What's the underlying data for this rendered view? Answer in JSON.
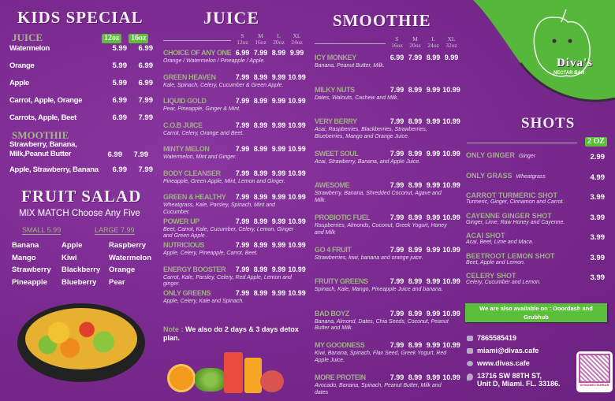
{
  "colors": {
    "background": "#7b2a90",
    "accent_green": "#5cbf3a",
    "item_name": "#a3ad8a"
  },
  "kids": {
    "title": "KIDS SPECIAL",
    "juice_label": "JUICE",
    "size1": "12oz",
    "size2": "16oz",
    "juice": [
      {
        "name": "Watermelon",
        "p1": "5.99",
        "p2": "6.99"
      },
      {
        "name": "Orange",
        "p1": "5.99",
        "p2": "6.99"
      },
      {
        "name": "Apple",
        "p1": "5.99",
        "p2": "6.99"
      },
      {
        "name": "Carrot, Apple, Orange",
        "p1": "6.99",
        "p2": "7.99"
      },
      {
        "name": "Carrots, Apple, Beet",
        "p1": "6.99",
        "p2": "7.99"
      }
    ],
    "smoothie_label": "SMOOTHIE",
    "smoothie": [
      {
        "name": "Strawberry, Banana, Milk,Peanut Butter",
        "p1": "6.99",
        "p2": "7.99"
      },
      {
        "name": "Apple, Strawberry, Banana",
        "p1": "6.99",
        "p2": "7.99"
      }
    ]
  },
  "fruit_salad": {
    "title": "FRUIT SALAD",
    "subtitle": "MIX MATCH Choose Any Five",
    "small": "SMALL  5.99",
    "large": "LARGE 7.99",
    "fruits": [
      [
        "Banana",
        "Apple",
        "Raspberry"
      ],
      [
        "Mango",
        "Kiwi",
        "Watermelon"
      ],
      [
        "Strawberry",
        "Blackberry",
        "Orange"
      ],
      [
        "Pineapple",
        "Blueberry",
        "Pear"
      ]
    ]
  },
  "juice": {
    "title": "JUICE",
    "sizes": [
      [
        "S",
        "12oz"
      ],
      [
        "M",
        "16oz"
      ],
      [
        "L",
        "20oz"
      ],
      [
        "XL",
        "24oz"
      ]
    ],
    "items": [
      {
        "name": "CHOICE OF ANY ONE",
        "desc": "Orange / Watermelon / Pineapple / Apple.",
        "prices": [
          "6.99",
          "7.99",
          "8.99",
          "9.99"
        ]
      },
      {
        "name": "GREEN HEAVEN",
        "desc": "Kale, Spinach, Celery, Cucumber & Green Apple.",
        "prices": [
          "7.99",
          "8.99",
          "9.99",
          "10.99"
        ]
      },
      {
        "name": "LIQUID GOLD",
        "desc": "Pear, Pineapple, Ginger & Mint.",
        "prices": [
          "7.99",
          "8.99",
          "9.99",
          "10.99"
        ]
      },
      {
        "name": "C.O.B JUICE",
        "desc": "Carrot, Celery, Orange and Beet.",
        "prices": [
          "7.99",
          "8.99",
          "9.99",
          "10.99"
        ]
      },
      {
        "name": "MINTY MELON",
        "desc": "Watermelon, Mint and Ginger.",
        "prices": [
          "7.99",
          "8.99",
          "9.99",
          "10.99"
        ]
      },
      {
        "name": "BODY CLEANSER",
        "desc": "Pineapple, Green Apple, Mint, Lemon and Ginger.",
        "prices": [
          "7.99",
          "8.99",
          "9.99",
          "10.99"
        ]
      },
      {
        "name": "GREEN & HEALTHY",
        "desc": "Wheatgrass, Kale, Parsley, Spinach, Mint and Cucumber.",
        "prices": [
          "7.99",
          "8.99",
          "9.99",
          "10.99"
        ]
      },
      {
        "name": "POWER UP",
        "desc": "Beet, Carrot, Kale, Cucumber, Celery, Lemon, Ginger and Green Apple .",
        "prices": [
          "7.99",
          "8.99",
          "9.99",
          "10.99"
        ]
      },
      {
        "name": "NUTRICIOUS",
        "desc": "Apple, Celery, Pineapple, Carrot, Beet.",
        "prices": [
          "7.99",
          "8.99",
          "9.99",
          "10.99"
        ]
      },
      {
        "name": "ENERGY BOOSTER",
        "desc": "Carrot, Kale, Parsley, Celery, Red Apple, Lemon and ginger.",
        "prices": [
          "7.99",
          "8.99",
          "9.99",
          "10.99"
        ]
      },
      {
        "name": "ONLY GREENS",
        "desc": "Apple, Celery, Kale and Spinach.",
        "prices": [
          "7.99",
          "8.99",
          "9.99",
          "10.99"
        ]
      }
    ],
    "note_label": "Note :",
    "note": " We also do 2 days & 3 days detox plan."
  },
  "smoothie": {
    "title": "SMOOTHIE",
    "sizes": [
      [
        "S",
        "16oz"
      ],
      [
        "M",
        "20oz"
      ],
      [
        "L",
        "24oz"
      ],
      [
        "XL",
        "32oz"
      ]
    ],
    "items": [
      {
        "name": "ICY MONKEY",
        "desc": "Banana, Peanut Butter, Milk.",
        "prices": [
          "6.99",
          "7.99",
          "8.99",
          "9.99"
        ]
      },
      {
        "name": "MILKY NUTS",
        "desc": "Dates, Walnuts, Cashew and Milk.",
        "prices": [
          "7.99",
          "8.99",
          "9.99",
          "10.99"
        ]
      },
      {
        "name": "VERY BERRY",
        "desc": "Acai, Raspberries, Blackberries, Strawberries, Blueberries, Mango and Orange Juice.",
        "prices": [
          "7.99",
          "8.99",
          "9.99",
          "10.99"
        ]
      },
      {
        "name": "SWEET SOUL",
        "desc": "Acai, Strawberry, Banana, and Apple Juice.",
        "prices": [
          "7.99",
          "8.99",
          "9.99",
          "10.99"
        ]
      },
      {
        "name": "AWESOME",
        "desc": "Strawberry, Banana, Shredded Coconut, Agave and Milk.",
        "prices": [
          "7.99",
          "8.99",
          "9.99",
          "10.99"
        ]
      },
      {
        "name": "PROBIOTIC FUEL",
        "desc": "Raspberries, Almonds, Coconut, Greek Yogurt, Honey and Milk",
        "prices": [
          "7.99",
          "8.99",
          "9.99",
          "10.99"
        ]
      },
      {
        "name": "GO 4 FRUIT",
        "desc": "Strawberries, kiwi, banana and orange juice.",
        "prices": [
          "7.99",
          "8.99",
          "9.99",
          "10.99"
        ]
      },
      {
        "name": "FRUITY GREENS",
        "desc": "Spinach, Kale, Mango, Pineapple Juice and banana.",
        "prices": [
          "7.99",
          "8.99",
          "9.99",
          "10.99"
        ]
      },
      {
        "name": "BAD BOYZ",
        "desc": "Banana, Almond, Dates, Chia Seeds, Coconut, Peanut Butter and Milk.",
        "prices": [
          "7.99",
          "8.99",
          "9.99",
          "10.99"
        ]
      },
      {
        "name": "MY GOODNESS",
        "desc": "Kiwi, Banana, Spinach, Flax Seed, Greek Yogurt, Red Apple Juice.",
        "prices": [
          "7.99",
          "8.99",
          "9.99",
          "10.99"
        ]
      },
      {
        "name": "MORE PROTEIN",
        "desc": "Avocado, Banana, Spinach, Peanut Butter, Milk and dates",
        "prices": [
          "7.99",
          "8.99",
          "9.99",
          "10.99"
        ]
      }
    ]
  },
  "shots": {
    "title": "SHOTS",
    "size": "2 OZ",
    "items": [
      {
        "name": "ONLY GINGER",
        "inline": "Ginger",
        "desc": "",
        "price": "2.99"
      },
      {
        "name": "ONLY GRASS",
        "inline": "Wheatgrass",
        "desc": "",
        "price": "4.99"
      },
      {
        "name": "CARROT TURMERIC SHOT",
        "inline": "",
        "desc": "Turmeric, Ginger, Cinnamon and Carrot.",
        "price": "3.99"
      },
      {
        "name": "CAYENNE GINGER SHOT",
        "inline": "",
        "desc": "Ginger, Lime, Raw Honey and Cayenne.",
        "price": "3.99"
      },
      {
        "name": "ACAI SHOT",
        "inline": "",
        "desc": "Acai, Beet, Lime and Maca.",
        "price": "3.99"
      },
      {
        "name": "BEETROOT LEMON SHOT",
        "inline": "",
        "desc": "Beet, Apple and Lemon.",
        "price": "3.99"
      },
      {
        "name": "CELERY SHOT",
        "inline": "",
        "desc": "Celery, Cucumber and Lemon.",
        "price": "3.99"
      }
    ]
  },
  "delivery": "We are also available on : Doordash and Grubhub",
  "contact": {
    "phone": "7865585419",
    "email": "miami@divas.cafe",
    "web": "www.divas.cafe",
    "address1": "13716 SW 88TH ST,",
    "address2": "Unit D, Miami. FL. 33186."
  },
  "logo": {
    "name": "Diva's",
    "tagline": "NECTAR BAR"
  },
  "qr_label": "DIVASNECTARBAR"
}
